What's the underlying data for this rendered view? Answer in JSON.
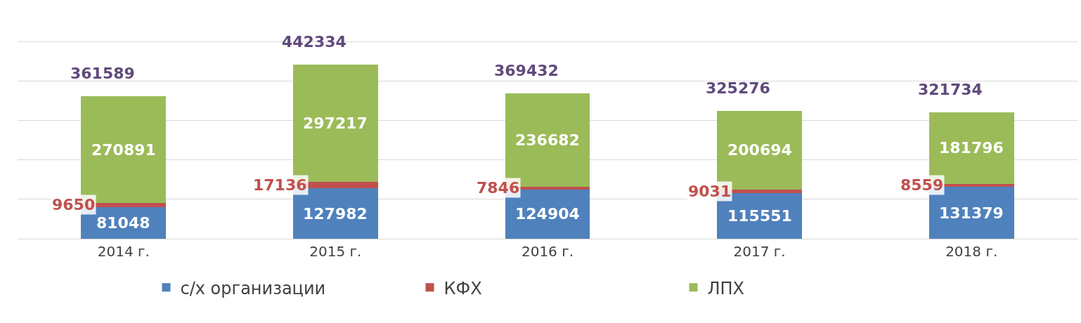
{
  "chart_data": {
    "type": "bar",
    "stacked": true,
    "categories": [
      "2014 г.",
      "2015 г.",
      "2016 г.",
      "2017 г.",
      "2018 г."
    ],
    "series": [
      {
        "name": "с/х организации",
        "color": "#4f81bd",
        "values": [
          81048,
          127982,
          124904,
          115551,
          131379
        ]
      },
      {
        "name": "КФХ",
        "color": "#c0504d",
        "values": [
          9650,
          17136,
          7846,
          9031,
          8559
        ]
      },
      {
        "name": "ЛПХ",
        "color": "#9bbb59",
        "values": [
          270891,
          297217,
          236682,
          200694,
          181796
        ]
      }
    ],
    "totals": [
      "361589",
      "442334",
      "369432",
      "325276",
      "321734"
    ],
    "data_labels": true,
    "tick_labels": "x",
    "grid": "y",
    "legend": "bottom"
  }
}
